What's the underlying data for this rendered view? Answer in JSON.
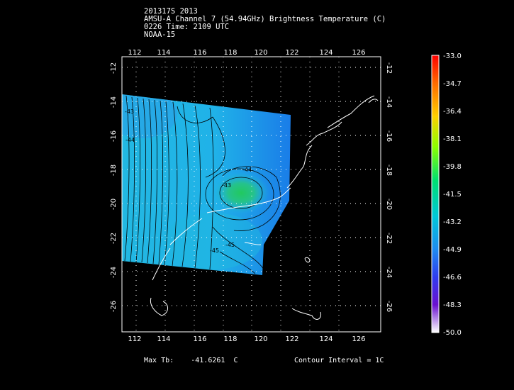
{
  "header": {
    "line1": "201317S 2013",
    "line2": "AMSU-A Channel 7 (54.94GHz) Brightness Temperature (C)",
    "line3": "0226 Time: 2109 UTC",
    "line4": "NOAA-15"
  },
  "map": {
    "x_ticks": [
      "112",
      "114",
      "116",
      "118",
      "120",
      "122",
      "124",
      "126"
    ],
    "y_ticks": [
      "-12",
      "-14",
      "-16",
      "-18",
      "-20",
      "-22",
      "-24",
      "-26"
    ],
    "contour_labels": [
      "-43",
      "-44",
      "-45",
      "-43",
      "-44",
      "-45",
      "-46",
      "-44",
      "-45"
    ],
    "colors": {
      "background": "#000000",
      "field_main": "#1eb4e6",
      "field_edge": "#1877e6",
      "field_center": "#22c87a",
      "coast": "#ffffff",
      "contour": "#000000"
    }
  },
  "colorbar": {
    "labels": [
      "-33.0",
      "-34.7",
      "-36.4",
      "-38.1",
      "-39.8",
      "-41.5",
      "-43.2",
      "-44.9",
      "-46.6",
      "-48.3",
      "-50.0"
    ]
  },
  "footer": {
    "max_tb_label": "Max Tb:",
    "max_tb_value": "-41.6261",
    "max_tb_unit": "C",
    "contour_interval": "Contour Interval = 1C"
  }
}
